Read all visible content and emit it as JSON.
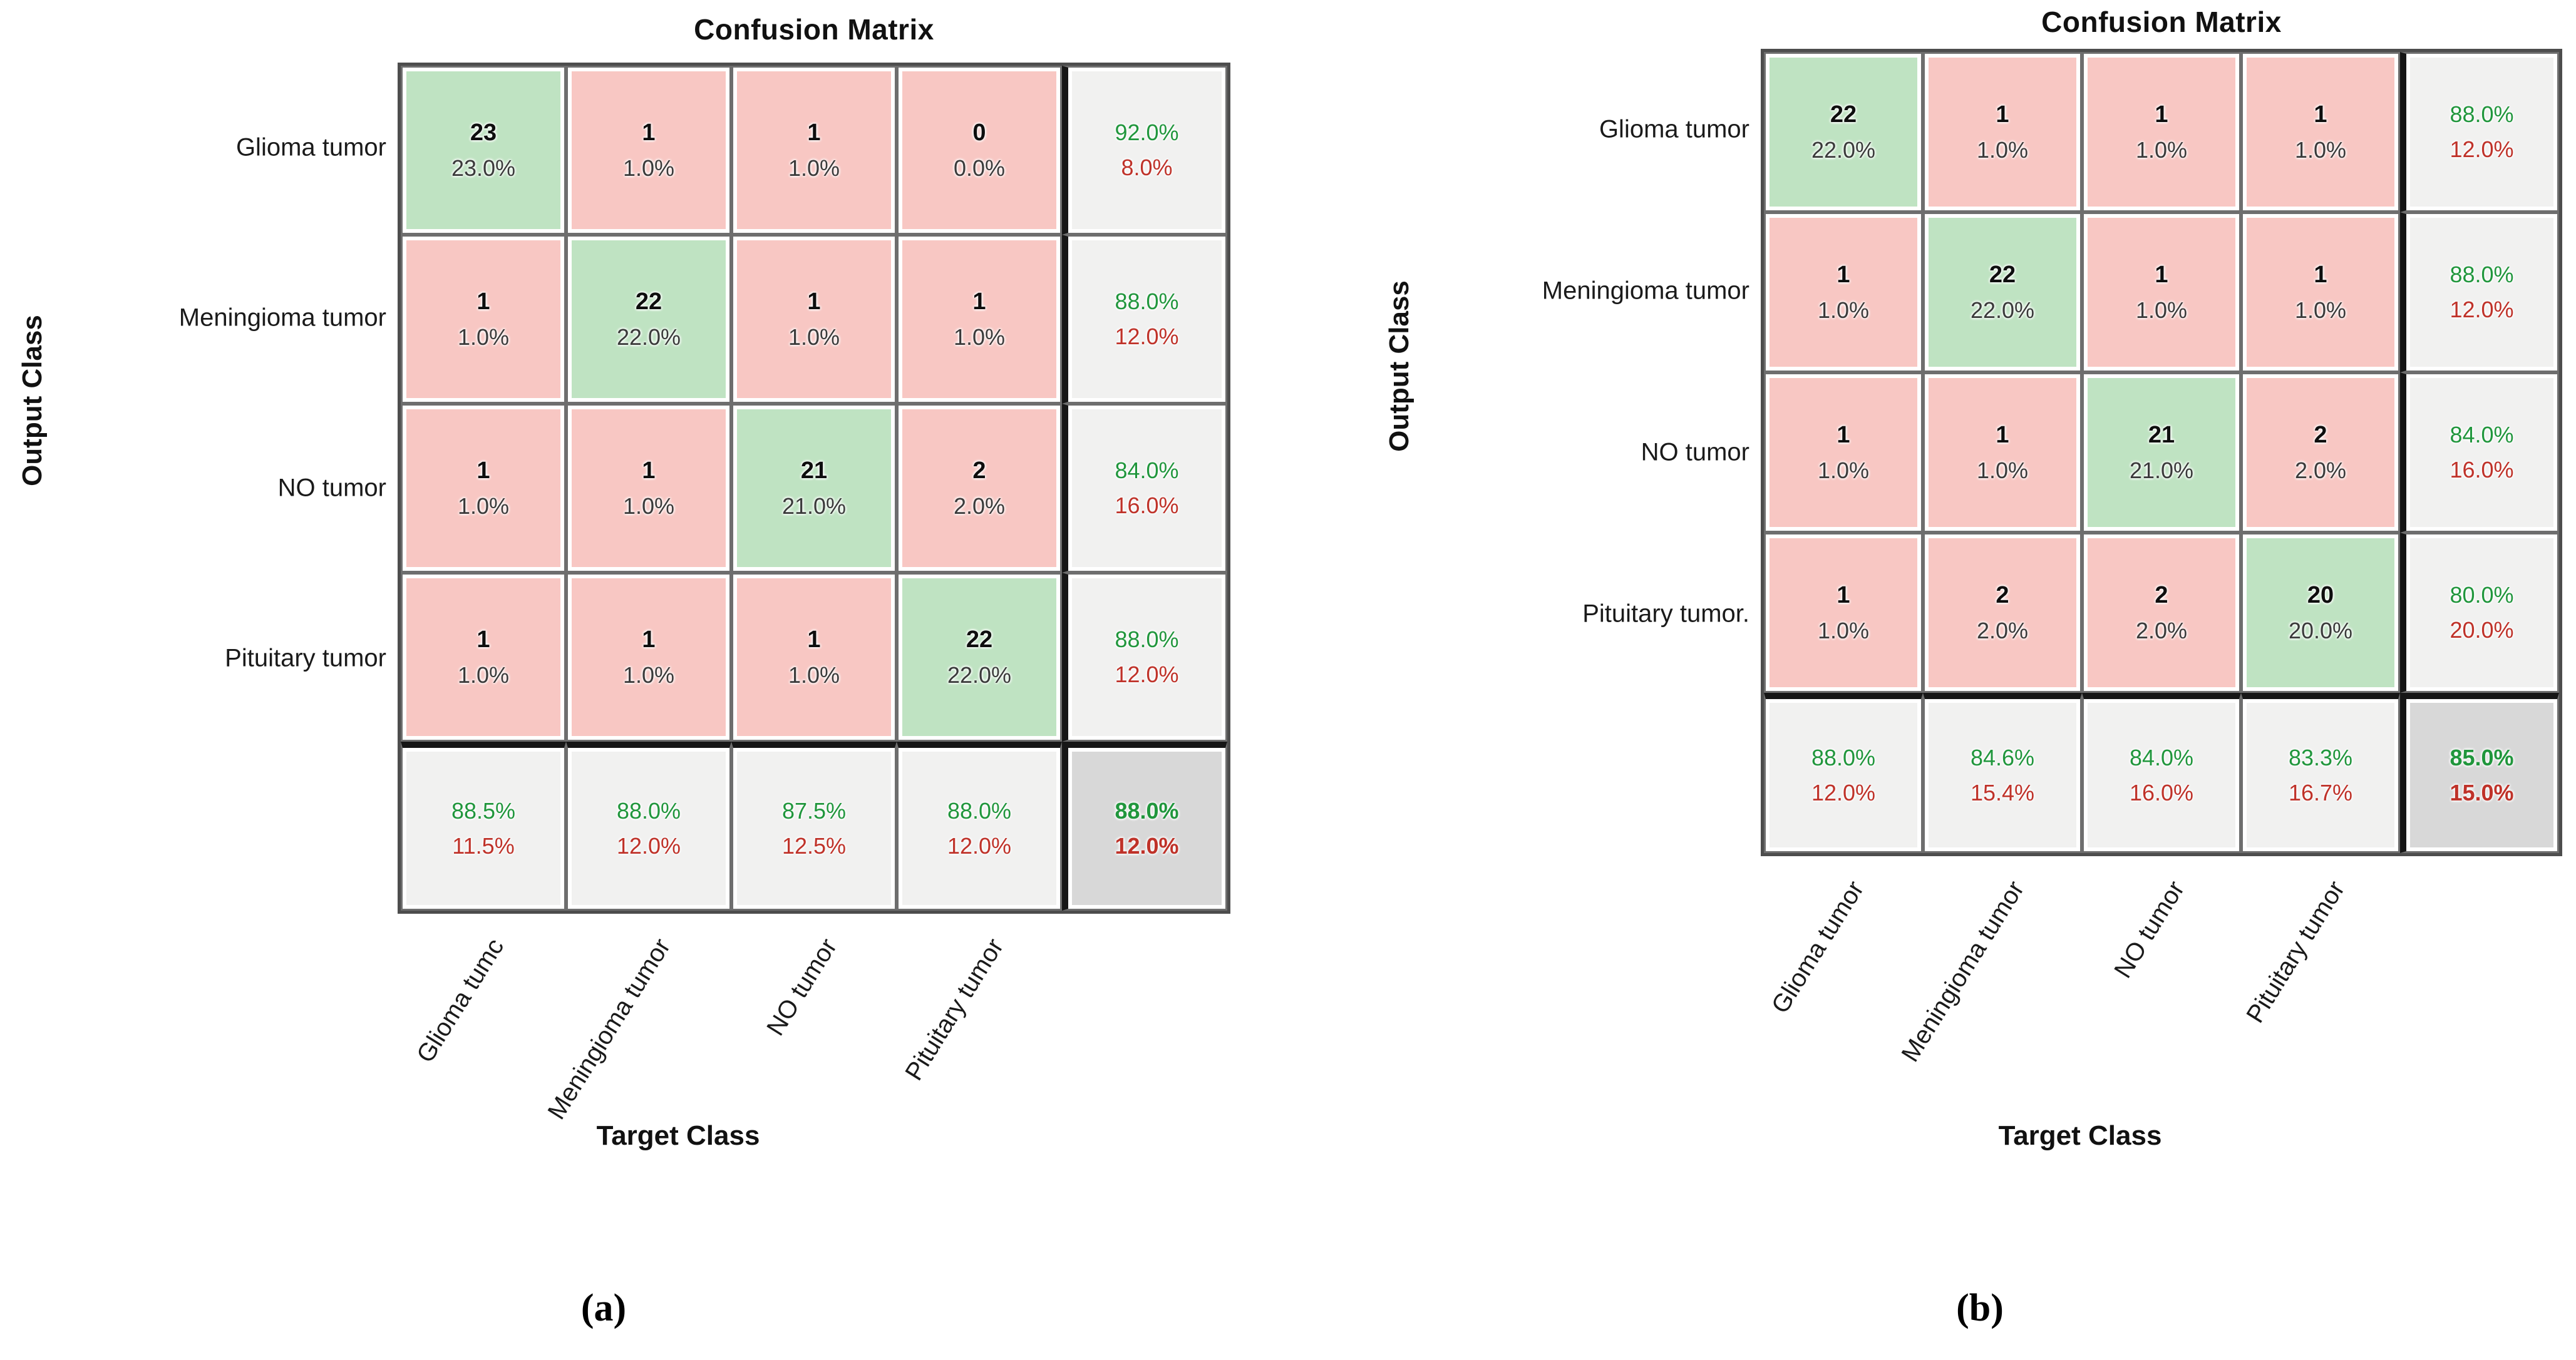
{
  "background": "#ffffff",
  "colors": {
    "diagonal_cell": "#bfe3c2",
    "offdiagonal_cell": "#f8c7c3",
    "summary_cell": "#f1f1f0",
    "corner_cell": "#d8d8d8",
    "positive_text": "#20963c",
    "negative_text": "#bf3229",
    "grid_line": "#6e6e6e",
    "heavy_separator": "#161616"
  },
  "chart_data": [
    {
      "id": "a",
      "type": "heatmap",
      "title": "Confusion Matrix",
      "xlabel": "Target Class",
      "ylabel": "Output Class",
      "caption": "(a)",
      "legend": "none",
      "grid": "on",
      "row_labels": [
        "Glioma tumor",
        "Meningioma tumor",
        "NO tumor",
        "Pituitary tumor"
      ],
      "col_labels": [
        "Glioma tumc",
        "Meningioma tumor",
        "NO tumor",
        "Pituitary tumor"
      ],
      "cells": [
        [
          {
            "count": 23,
            "pct": "23.0%"
          },
          {
            "count": 1,
            "pct": "1.0%"
          },
          {
            "count": 1,
            "pct": "1.0%"
          },
          {
            "count": 0,
            "pct": "0.0%"
          }
        ],
        [
          {
            "count": 1,
            "pct": "1.0%"
          },
          {
            "count": 22,
            "pct": "22.0%"
          },
          {
            "count": 1,
            "pct": "1.0%"
          },
          {
            "count": 1,
            "pct": "1.0%"
          }
        ],
        [
          {
            "count": 1,
            "pct": "1.0%"
          },
          {
            "count": 1,
            "pct": "1.0%"
          },
          {
            "count": 21,
            "pct": "21.0%"
          },
          {
            "count": 2,
            "pct": "2.0%"
          }
        ],
        [
          {
            "count": 1,
            "pct": "1.0%"
          },
          {
            "count": 1,
            "pct": "1.0%"
          },
          {
            "count": 1,
            "pct": "1.0%"
          },
          {
            "count": 22,
            "pct": "22.0%"
          }
        ]
      ],
      "row_summary": [
        {
          "top": "92.0%",
          "bottom": "8.0%"
        },
        {
          "top": "88.0%",
          "bottom": "12.0%"
        },
        {
          "top": "84.0%",
          "bottom": "16.0%"
        },
        {
          "top": "88.0%",
          "bottom": "12.0%"
        }
      ],
      "col_summary": [
        {
          "top": "88.5%",
          "bottom": "11.5%"
        },
        {
          "top": "88.0%",
          "bottom": "12.0%"
        },
        {
          "top": "87.5%",
          "bottom": "12.5%"
        },
        {
          "top": "88.0%",
          "bottom": "12.0%"
        }
      ],
      "corner": {
        "top": "88.0%",
        "bottom": "12.0%"
      }
    },
    {
      "id": "b",
      "type": "heatmap",
      "title": "Confusion Matrix",
      "xlabel": "Target Class",
      "ylabel": "Output Class",
      "caption": "(b)",
      "legend": "none",
      "grid": "on",
      "row_labels": [
        "Glioma tumor",
        "Meningioma tumor",
        "NO tumor",
        "Pituitary tumor."
      ],
      "col_labels": [
        "Glioma tumor",
        "Meningioma tumor",
        "NO tumor",
        "Pituitary tumor"
      ],
      "cells": [
        [
          {
            "count": 22,
            "pct": "22.0%"
          },
          {
            "count": 1,
            "pct": "1.0%"
          },
          {
            "count": 1,
            "pct": "1.0%"
          },
          {
            "count": 1,
            "pct": "1.0%"
          }
        ],
        [
          {
            "count": 1,
            "pct": "1.0%"
          },
          {
            "count": 22,
            "pct": "22.0%"
          },
          {
            "count": 1,
            "pct": "1.0%"
          },
          {
            "count": 1,
            "pct": "1.0%"
          }
        ],
        [
          {
            "count": 1,
            "pct": "1.0%"
          },
          {
            "count": 1,
            "pct": "1.0%"
          },
          {
            "count": 21,
            "pct": "21.0%"
          },
          {
            "count": 2,
            "pct": "2.0%"
          }
        ],
        [
          {
            "count": 1,
            "pct": "1.0%"
          },
          {
            "count": 2,
            "pct": "2.0%"
          },
          {
            "count": 2,
            "pct": "2.0%"
          },
          {
            "count": 20,
            "pct": "20.0%"
          }
        ]
      ],
      "row_summary": [
        {
          "top": "88.0%",
          "bottom": "12.0%"
        },
        {
          "top": "88.0%",
          "bottom": "12.0%"
        },
        {
          "top": "84.0%",
          "bottom": "16.0%"
        },
        {
          "top": "80.0%",
          "bottom": "20.0%"
        }
      ],
      "col_summary": [
        {
          "top": "88.0%",
          "bottom": "12.0%"
        },
        {
          "top": "84.6%",
          "bottom": "15.4%"
        },
        {
          "top": "84.0%",
          "bottom": "16.0%"
        },
        {
          "top": "83.3%",
          "bottom": "16.7%"
        }
      ],
      "corner": {
        "top": "85.0%",
        "bottom": "15.0%"
      }
    }
  ]
}
